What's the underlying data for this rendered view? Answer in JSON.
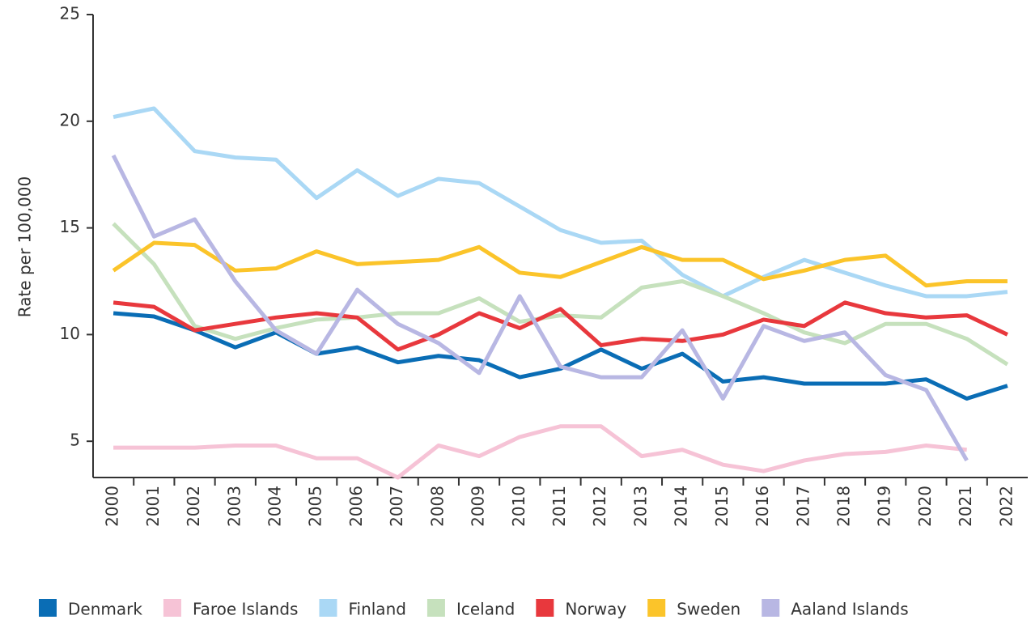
{
  "chart_data": {
    "type": "line",
    "y_label": "Rate per 100,000",
    "categories": [
      "2000",
      "2001",
      "2002",
      "2003",
      "2004",
      "2005",
      "2006",
      "2007",
      "2008",
      "2009",
      "2010",
      "2011",
      "2012",
      "2013",
      "2014",
      "2015",
      "2016",
      "2017",
      "2018",
      "2019",
      "2020",
      "2021",
      "2022"
    ],
    "ylim": [
      3.3,
      25
    ],
    "yticks": [
      5,
      10,
      15,
      20,
      25
    ],
    "grid": false,
    "legend": "bottom",
    "series": [
      {
        "name": "Denmark",
        "color": "#0a6db5",
        "values": [
          11.0,
          10.85,
          10.2,
          9.4,
          10.1,
          9.1,
          9.4,
          8.7,
          9.0,
          8.8,
          8.0,
          8.4,
          9.3,
          8.4,
          9.1,
          7.8,
          8.0,
          7.7,
          7.7,
          7.7,
          7.9,
          7.0,
          7.6
        ]
      },
      {
        "name": "Faroe Islands",
        "color": "#f6c3d6",
        "values": [
          4.7,
          4.7,
          4.7,
          4.8,
          4.8,
          4.2,
          4.2,
          3.3,
          4.8,
          4.3,
          5.2,
          5.7,
          5.7,
          4.3,
          4.6,
          3.9,
          3.6,
          4.1,
          4.4,
          4.5,
          4.8,
          4.6,
          null
        ]
      },
      {
        "name": "Finland",
        "color": "#aad8f5",
        "values": [
          20.2,
          20.6,
          18.6,
          18.3,
          18.2,
          16.4,
          17.7,
          16.5,
          17.3,
          17.1,
          16.0,
          14.9,
          14.3,
          14.4,
          12.8,
          11.8,
          12.7,
          13.5,
          12.9,
          12.3,
          11.8,
          11.8,
          12.0
        ]
      },
      {
        "name": "Iceland",
        "color": "#c6e1bd",
        "values": [
          15.2,
          13.3,
          10.4,
          9.8,
          10.3,
          10.7,
          10.8,
          11.0,
          11.0,
          11.7,
          10.6,
          10.9,
          10.8,
          12.2,
          12.5,
          11.8,
          11.0,
          10.1,
          9.6,
          10.5,
          10.5,
          9.8,
          8.6
        ]
      },
      {
        "name": "Norway",
        "color": "#e8383d",
        "values": [
          11.5,
          11.3,
          10.2,
          10.5,
          10.8,
          11.0,
          10.8,
          9.3,
          10.0,
          11.0,
          10.3,
          11.2,
          9.5,
          9.8,
          9.7,
          10.0,
          10.7,
          10.4,
          11.5,
          11.0,
          10.8,
          10.9,
          10.0
        ]
      },
      {
        "name": "Sweden",
        "color": "#fbc42a",
        "values": [
          13.0,
          14.3,
          14.2,
          13.0,
          13.1,
          13.9,
          13.3,
          13.4,
          13.5,
          14.1,
          12.9,
          12.7,
          13.4,
          14.1,
          13.5,
          13.5,
          12.6,
          13.0,
          13.5,
          13.7,
          12.3,
          12.5,
          12.5
        ]
      },
      {
        "name": "Aaland Islands",
        "color": "#b8b7e3",
        "values": [
          18.4,
          14.6,
          15.4,
          12.5,
          10.2,
          9.1,
          12.1,
          10.5,
          9.6,
          8.2,
          11.8,
          8.5,
          8.0,
          8.0,
          10.2,
          7.0,
          10.4,
          9.7,
          10.1,
          8.1,
          7.4,
          4.1,
          null
        ]
      }
    ]
  }
}
